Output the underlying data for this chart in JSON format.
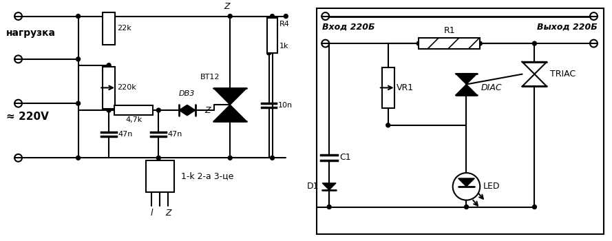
{
  "bg_color": "#ffffff",
  "line_color": "#000000",
  "line_width": 1.5,
  "fig_width": 8.89,
  "fig_height": 3.5,
  "dpi": 100,
  "left_circuit": {
    "title": "нагрузка",
    "voltage": "≈ 220V",
    "R22k": "22k",
    "R220k": "220k",
    "R47k": "4,7k",
    "C47n_1": "47n",
    "C47n_2": "47n",
    "DB3": "DB3",
    "BT12": "BT12",
    "R4_1": "R4",
    "R4_2": "1k",
    "C10n": "10n",
    "Z1": "Z",
    "Z2": "Z"
  },
  "bottom_label": "1-k 2-a 3-це",
  "lead1": "l",
  "leadZ": "Z",
  "right_circuit": {
    "input_label": "Вход 220Б",
    "output_label": "Выход 220Б",
    "R1": "R1",
    "VR1": "VR1",
    "C1": "C1",
    "D1": "D1",
    "DIAC": "DIAC",
    "LED": "LED",
    "TRIAC": "TRIAC"
  }
}
